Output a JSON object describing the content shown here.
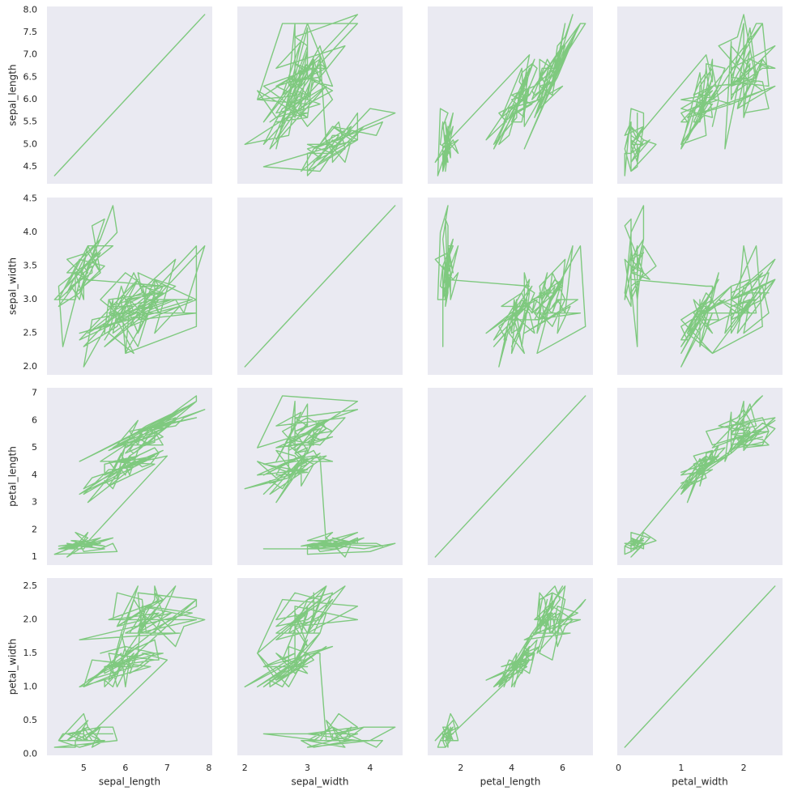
{
  "chart_data": {
    "type": "line",
    "color": "#7fc97f",
    "series": [
      {
        "name": "sepal_length",
        "lim": [
          4.12,
          8.08
        ],
        "xticks": [
          5,
          6,
          7,
          8
        ],
        "yticks": [
          4.5,
          {
            "value": 5,
            "label": "5.0"
          },
          5.5,
          {
            "value": 6,
            "label": "6.0"
          },
          6.5,
          {
            "value": 7,
            "label": "7.0"
          },
          7.5,
          {
            "value": 8,
            "label": "8.0"
          }
        ],
        "values": [
          5.1,
          4.9,
          4.7,
          4.6,
          5,
          5.4,
          4.6,
          5,
          4.4,
          4.9,
          5.4,
          4.8,
          4.8,
          4.3,
          5.8,
          5.7,
          5.4,
          5.1,
          5.7,
          5.1,
          5.4,
          5.1,
          4.6,
          5.1,
          4.8,
          5,
          5,
          5.2,
          5.2,
          4.7,
          4.8,
          5.4,
          5.2,
          5.5,
          4.9,
          5,
          5.5,
          4.9,
          4.4,
          5.1,
          5,
          4.5,
          4.4,
          5,
          5.1,
          4.8,
          5.1,
          4.6,
          5.3,
          5,
          7,
          6.4,
          6.9,
          5.5,
          6.5,
          5.7,
          6.3,
          4.9,
          6.6,
          5.2,
          5,
          5.9,
          6,
          6.1,
          5.6,
          6.7,
          5.6,
          5.8,
          6.2,
          5.6,
          5.9,
          6.1,
          6.3,
          6.1,
          6.4,
          6.6,
          6.8,
          6.7,
          6,
          5.7,
          5.5,
          5.5,
          5.8,
          6,
          5.4,
          6,
          6.7,
          6.3,
          5.6,
          5.5,
          5.5,
          6.1,
          5.8,
          5,
          5.6,
          5.7,
          5.7,
          6.2,
          5.1,
          5.7,
          6.3,
          5.8,
          7.1,
          6.3,
          6.5,
          7.6,
          4.9,
          7.3,
          6.7,
          7.2,
          6.5,
          6.4,
          6.8,
          5.7,
          5.8,
          6.4,
          6.5,
          7.7,
          7.7,
          6,
          6.9,
          5.6,
          7.7,
          6.3,
          6.7,
          7.2,
          6.2,
          6.1,
          6.4,
          7.2,
          7.4,
          7.9,
          6.4,
          6.3,
          6.1,
          7.7,
          6.3,
          6.4,
          6,
          6.9,
          6.7,
          6.9,
          5.8,
          6.8,
          6.7,
          6.7,
          6.3,
          6.5,
          6.2,
          5.9
        ]
      },
      {
        "name": "sepal_width",
        "lim": [
          1.88,
          4.52
        ],
        "xticks": [
          2,
          3,
          4
        ],
        "yticks": [
          {
            "value": 2,
            "label": "2.0"
          },
          2.5,
          {
            "value": 3,
            "label": "3.0"
          },
          3.5,
          {
            "value": 4,
            "label": "4.0"
          },
          4.5
        ],
        "values": [
          3.5,
          3,
          3.2,
          3.1,
          3.6,
          3.9,
          3.4,
          3.4,
          2.9,
          3.1,
          3.7,
          3.4,
          3,
          3,
          4,
          4.4,
          3.9,
          3.5,
          3.8,
          3.8,
          3.4,
          3.7,
          3.6,
          3.3,
          3.4,
          3,
          3.4,
          3.5,
          3.4,
          3.2,
          3.1,
          3.4,
          4.1,
          4.2,
          3.1,
          3.2,
          3.5,
          3.6,
          3,
          3.4,
          3.5,
          2.3,
          3.2,
          3.5,
          3.8,
          3,
          3.8,
          3.2,
          3.7,
          3.3,
          3.2,
          3.2,
          3.1,
          2.3,
          2.8,
          2.8,
          3.3,
          2.4,
          2.9,
          2.7,
          2,
          3,
          2.2,
          2.9,
          2.9,
          3.1,
          3,
          2.7,
          2.2,
          2.5,
          3.2,
          2.8,
          2.5,
          2.8,
          2.9,
          3,
          2.8,
          3,
          2.9,
          2.6,
          2.4,
          2.4,
          2.7,
          2.7,
          3,
          3.4,
          3.1,
          2.3,
          3,
          2.5,
          2.6,
          3,
          2.6,
          2.3,
          2.7,
          3,
          2.9,
          2.9,
          2.5,
          2.8,
          3.3,
          2.7,
          3,
          2.9,
          3,
          3,
          2.5,
          2.9,
          2.5,
          3.6,
          3.2,
          2.7,
          3,
          2.5,
          2.8,
          3.2,
          3,
          3.8,
          2.6,
          2.2,
          3.2,
          2.8,
          2.8,
          2.7,
          3.3,
          3.2,
          2.8,
          3,
          2.8,
          3,
          2.8,
          3.8,
          2.8,
          2.8,
          2.6,
          3,
          3.4,
          3.1,
          3,
          3.1,
          3.1,
          3.1,
          2.7,
          3.2,
          3.3,
          3,
          2.5,
          3,
          3.4,
          3
        ]
      },
      {
        "name": "petal_length",
        "lim": [
          0.705,
          7.195
        ],
        "xticks": [
          2,
          4,
          6
        ],
        "yticks": [
          1,
          2,
          3,
          4,
          5,
          6,
          7
        ],
        "values": [
          1.4,
          1.4,
          1.3,
          1.5,
          1.4,
          1.7,
          1.4,
          1.5,
          1.4,
          1.5,
          1.5,
          1.6,
          1.4,
          1.1,
          1.2,
          1.5,
          1.3,
          1.4,
          1.7,
          1.5,
          1.7,
          1.5,
          1,
          1.7,
          1.9,
          1.6,
          1.6,
          1.5,
          1.4,
          1.6,
          1.6,
          1.5,
          1.5,
          1.4,
          1.5,
          1.2,
          1.3,
          1.4,
          1.3,
          1.5,
          1.3,
          1.3,
          1.3,
          1.6,
          1.9,
          1.4,
          1.6,
          1.4,
          1.5,
          1.4,
          4.7,
          4.5,
          4.9,
          4,
          4.6,
          4.5,
          4.7,
          3.3,
          4.6,
          3.9,
          3.5,
          4.2,
          4,
          4.7,
          3.6,
          4.4,
          4.5,
          4.1,
          4.5,
          3.9,
          4.8,
          4,
          4.9,
          4.7,
          4.3,
          4.4,
          4.8,
          5,
          4.5,
          3.5,
          3.8,
          3.7,
          3.9,
          5.1,
          4.5,
          4.5,
          4.7,
          4.4,
          4.1,
          4,
          4.4,
          4.6,
          4,
          3.3,
          4.2,
          4.2,
          4.2,
          4.3,
          3,
          4.1,
          6,
          5.1,
          5.9,
          5.6,
          5.8,
          6.6,
          4.5,
          6.3,
          5.8,
          6.1,
          5.1,
          5.3,
          5.5,
          5,
          5.1,
          5.3,
          5.5,
          6.7,
          6.9,
          5,
          5.7,
          4.9,
          6.7,
          4.9,
          5.7,
          6,
          4.8,
          4.9,
          5.6,
          5.8,
          6.1,
          6.4,
          5.6,
          5.1,
          5.6,
          6.1,
          5.6,
          5.5,
          4.8,
          5.4,
          5.6,
          5.1,
          5.1,
          5.9,
          5.7,
          5.2,
          5,
          5.2,
          5.4,
          5.1
        ]
      },
      {
        "name": "petal_width",
        "lim": [
          -0.02,
          2.62
        ],
        "xticks": [
          0,
          1,
          2
        ],
        "yticks": [
          {
            "value": 0,
            "label": "0.0"
          },
          0.5,
          {
            "value": 1,
            "label": "1.0"
          },
          1.5,
          {
            "value": 2,
            "label": "2.0"
          },
          2.5
        ],
        "values": [
          0.2,
          0.2,
          0.2,
          0.2,
          0.2,
          0.4,
          0.3,
          0.2,
          0.2,
          0.1,
          0.2,
          0.2,
          0.1,
          0.1,
          0.2,
          0.4,
          0.4,
          0.3,
          0.3,
          0.3,
          0.2,
          0.4,
          0.2,
          0.5,
          0.2,
          0.2,
          0.4,
          0.2,
          0.2,
          0.2,
          0.2,
          0.4,
          0.1,
          0.2,
          0.2,
          0.2,
          0.2,
          0.1,
          0.2,
          0.2,
          0.3,
          0.3,
          0.2,
          0.6,
          0.4,
          0.3,
          0.2,
          0.2,
          0.2,
          0.2,
          1.4,
          1.5,
          1.5,
          1.3,
          1.5,
          1.3,
          1.6,
          1,
          1.3,
          1.4,
          1,
          1.5,
          1,
          1.4,
          1.3,
          1.4,
          1.5,
          1,
          1.5,
          1.1,
          1.8,
          1.3,
          1.5,
          1.2,
          1.3,
          1.4,
          1.4,
          1.7,
          1.5,
          1,
          1.1,
          1,
          1.2,
          1.6,
          1.5,
          1.6,
          1.5,
          1.3,
          1.3,
          1.3,
          1.2,
          1.4,
          1.2,
          1,
          1.3,
          1.2,
          1.3,
          1.3,
          1.1,
          1.3,
          2.5,
          1.9,
          2.1,
          1.8,
          2.2,
          2.1,
          1.7,
          1.8,
          1.8,
          2.5,
          2,
          1.9,
          2.1,
          2,
          2.4,
          2.3,
          1.8,
          2.2,
          2.3,
          1.5,
          2.3,
          2,
          2,
          1.8,
          2.1,
          1.8,
          1.8,
          1.8,
          2.1,
          1.6,
          1.9,
          2,
          2.2,
          1.5,
          1.4,
          2.3,
          2.4,
          1.8,
          1.8,
          2.1,
          2.4,
          2.3,
          1.9,
          2.3,
          2.5,
          2.3,
          1.9,
          2,
          2.3,
          1.8
        ]
      }
    ]
  }
}
